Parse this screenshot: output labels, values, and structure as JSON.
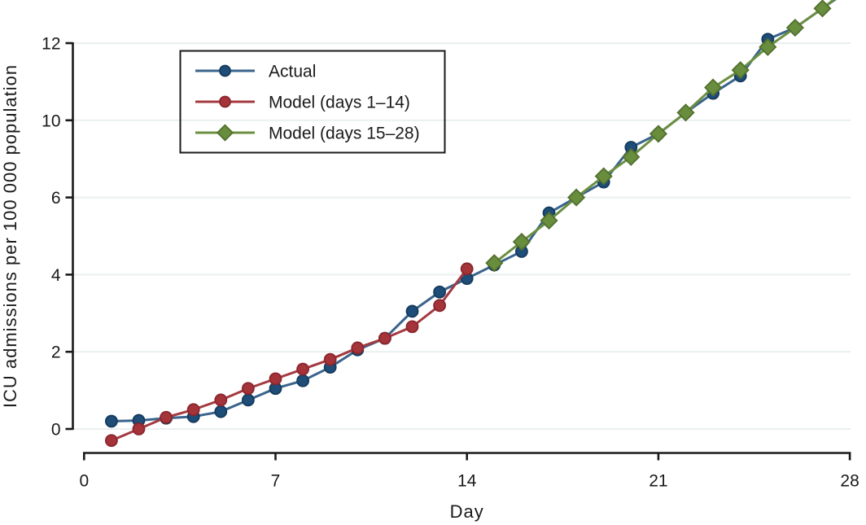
{
  "figure": {
    "background": "#ffffff",
    "kind": "static scientific line chart"
  },
  "chart_data": {
    "type": "line",
    "title": "",
    "xlabel": "Day",
    "ylabel": "ICU admissions per 100 000 population",
    "x_tick_labels": [
      "0",
      "7",
      "14",
      "21",
      "28"
    ],
    "x_tick_values": [
      0,
      7,
      14,
      21,
      28
    ],
    "xlim": [
      0,
      28
    ],
    "y_tick_labels": [
      "0",
      "2",
      "4",
      "6",
      "10",
      "12"
    ],
    "y_axis_note": "Six evenly spaced horizontal gridlines labeled 0, 2, 4, 6, 10, 12 - the value 8 is skipped, so the band between the 6 and 10 gridlines is compressed (distorted axis exactly as printed)",
    "grid": "horizontal",
    "legend_position": "upper-left",
    "axis_color": "#1a1a1a",
    "grid_color": "#e9efef",
    "text_color": "#1a1a1a",
    "series": [
      {
        "name": "Actual",
        "marker": "circle",
        "line_color": "#3a648c",
        "marker_fill": "#1e4d78",
        "marker_edge": "#143a5c",
        "days": [
          1,
          2,
          3,
          4,
          5,
          6,
          7,
          8,
          9,
          10,
          11,
          12,
          13,
          14,
          15,
          16,
          17,
          18,
          19,
          20,
          21,
          22,
          23,
          24,
          25,
          26,
          27,
          28
        ],
        "values": [
          0.2,
          0.22,
          0.28,
          0.32,
          0.45,
          0.75,
          1.05,
          1.25,
          1.6,
          2.05,
          2.35,
          3.05,
          3.55,
          3.9,
          4.25,
          4.6,
          5.6,
          6.0,
          6.8,
          8.6,
          9.3,
          10.2,
          10.7,
          11.15,
          12.1,
          12.4,
          12.9,
          13.4
        ]
      },
      {
        "name": "Model (days 1–14)",
        "marker": "circle",
        "line_color": "#a43a40",
        "marker_fill": "#a4333a",
        "marker_edge": "#8a262d",
        "days": [
          1,
          2,
          3,
          4,
          5,
          6,
          7,
          8,
          9,
          10,
          11,
          12,
          13,
          14
        ],
        "values": [
          -0.3,
          0.0,
          0.3,
          0.5,
          0.75,
          1.05,
          1.3,
          1.55,
          1.8,
          2.1,
          2.35,
          2.65,
          3.2,
          4.15
        ]
      },
      {
        "name": "Model (days 15–28)",
        "marker": "diamond",
        "line_color": "#6b8f41",
        "marker_fill": "#688d3c",
        "marker_edge": "#52702e",
        "days": [
          15,
          16,
          17,
          18,
          19,
          20,
          21,
          22,
          23,
          24,
          25,
          26,
          27,
          28
        ],
        "values": [
          4.3,
          4.85,
          5.4,
          6.0,
          7.1,
          8.1,
          9.3,
          10.2,
          10.85,
          11.3,
          11.9,
          12.4,
          12.9,
          13.45
        ]
      }
    ]
  }
}
